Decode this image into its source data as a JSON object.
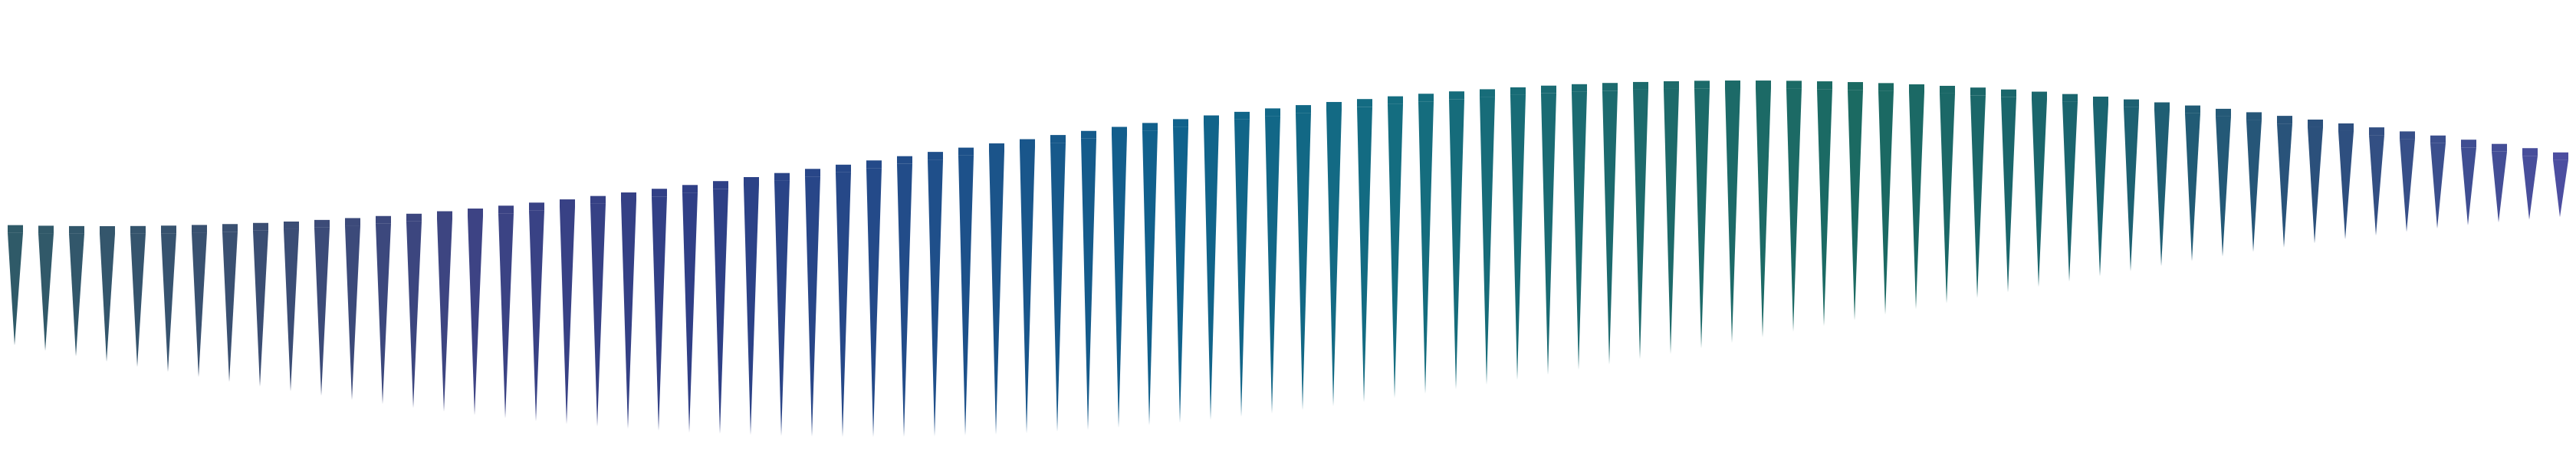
{
  "colors": {
    "background": "#ffffff",
    "spike_cycle": [
      "#2f5a68",
      "#3b4f72",
      "#3d4384",
      "#2f3f86",
      "#1f4f8a",
      "#10628c",
      "#146d80",
      "#1d6a6c",
      "#1b6a62",
      "#1a6470",
      "#2c4f7c",
      "#4c4ea0"
    ]
  },
  "figure": {
    "spike_count": 84,
    "description_shape": "sine-modulated downward triangular spikes"
  }
}
